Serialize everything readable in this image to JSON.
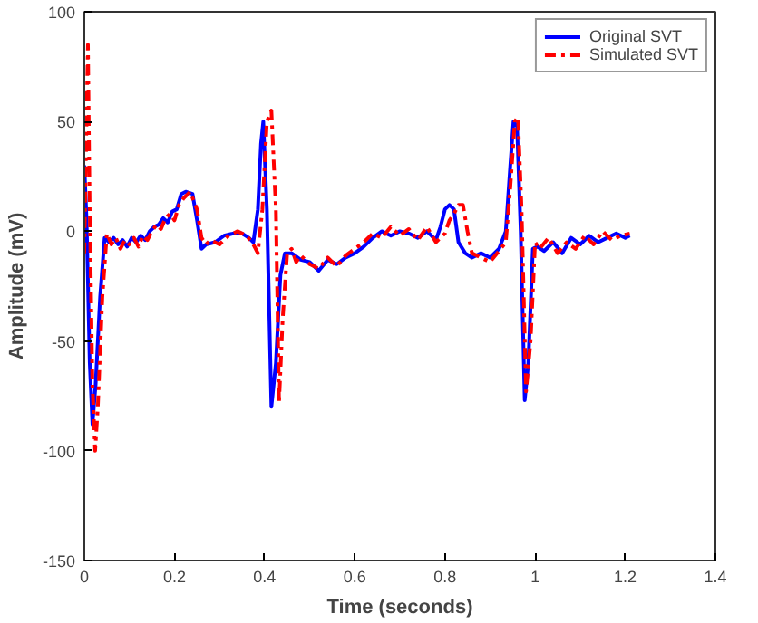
{
  "chart_data": {
    "type": "line",
    "xlabel": "Time (seconds)",
    "ylabel": "Amplitude (mV)",
    "xlim": [
      0,
      1.4
    ],
    "ylim": [
      -150,
      100
    ],
    "xticks": [
      0,
      0.2,
      0.4,
      0.6,
      0.8,
      1,
      1.2,
      1.4
    ],
    "yticks": [
      -150,
      -100,
      -50,
      0,
      50,
      100
    ],
    "grid": false,
    "legend": "top right",
    "series": [
      {
        "name": "Original SVT",
        "color": "#0000ff",
        "line_style": "solid",
        "x": [
          0,
          0.005,
          0.012,
          0.018,
          0.025,
          0.035,
          0.045,
          0.055,
          0.065,
          0.075,
          0.085,
          0.095,
          0.105,
          0.115,
          0.125,
          0.135,
          0.145,
          0.155,
          0.165,
          0.175,
          0.185,
          0.195,
          0.205,
          0.215,
          0.225,
          0.24,
          0.25,
          0.26,
          0.27,
          0.29,
          0.31,
          0.33,
          0.35,
          0.365,
          0.375,
          0.385,
          0.392,
          0.397,
          0.405,
          0.415,
          0.425,
          0.435,
          0.445,
          0.46,
          0.48,
          0.5,
          0.52,
          0.54,
          0.56,
          0.58,
          0.6,
          0.62,
          0.64,
          0.66,
          0.68,
          0.7,
          0.72,
          0.74,
          0.76,
          0.78,
          0.79,
          0.8,
          0.81,
          0.82,
          0.83,
          0.845,
          0.86,
          0.88,
          0.9,
          0.92,
          0.935,
          0.945,
          0.952,
          0.96,
          0.968,
          0.977,
          0.985,
          0.995,
          1.005,
          1.02,
          1.04,
          1.06,
          1.08,
          1.1,
          1.12,
          1.14,
          1.16,
          1.18,
          1.2,
          1.21
        ],
        "values": [
          30,
          5,
          -60,
          -88,
          -70,
          -30,
          -3,
          -5,
          -3,
          -6,
          -4,
          -7,
          -3,
          -5,
          -2,
          -4,
          0,
          2,
          3,
          6,
          4,
          9,
          10,
          17,
          18,
          17,
          5,
          -8,
          -6,
          -5,
          -2,
          -1,
          -1,
          -3,
          -5,
          10,
          40,
          50,
          10,
          -80,
          -60,
          -20,
          -10,
          -10,
          -13,
          -14,
          -18,
          -13,
          -15,
          -12,
          -10,
          -7,
          -3,
          0,
          -2,
          0,
          -1,
          -3,
          0,
          -4,
          2,
          10,
          12,
          10,
          -5,
          -10,
          -12,
          -10,
          -12,
          -8,
          0,
          30,
          50,
          48,
          0,
          -77,
          -60,
          -8,
          -7,
          -9,
          -5,
          -10,
          -3,
          -6,
          -2,
          -5,
          -3,
          -1,
          -3,
          -2
        ]
      },
      {
        "name": "Simulated SVT",
        "color": "#ff0000",
        "line_style": "dashed",
        "x": [
          0,
          0.004,
          0.008,
          0.012,
          0.018,
          0.024,
          0.03,
          0.04,
          0.05,
          0.06,
          0.07,
          0.08,
          0.09,
          0.1,
          0.11,
          0.12,
          0.13,
          0.14,
          0.15,
          0.16,
          0.17,
          0.18,
          0.19,
          0.2,
          0.21,
          0.22,
          0.235,
          0.25,
          0.26,
          0.27,
          0.28,
          0.3,
          0.32,
          0.34,
          0.36,
          0.375,
          0.385,
          0.395,
          0.405,
          0.415,
          0.425,
          0.432,
          0.44,
          0.45,
          0.46,
          0.47,
          0.48,
          0.5,
          0.52,
          0.54,
          0.56,
          0.58,
          0.6,
          0.62,
          0.64,
          0.66,
          0.68,
          0.7,
          0.72,
          0.74,
          0.76,
          0.78,
          0.8,
          0.81,
          0.82,
          0.83,
          0.84,
          0.85,
          0.86,
          0.88,
          0.9,
          0.92,
          0.935,
          0.945,
          0.955,
          0.962,
          0.97,
          0.98,
          0.99,
          1.0,
          1.01,
          1.03,
          1.05,
          1.07,
          1.09,
          1.11,
          1.13,
          1.15,
          1.17,
          1.19,
          1.21
        ],
        "values": [
          -10,
          40,
          85,
          10,
          -70,
          -100,
          -80,
          -30,
          -1,
          -6,
          -3,
          -8,
          -4,
          -6,
          -3,
          -7,
          -2,
          -4,
          0,
          3,
          1,
          6,
          8,
          5,
          12,
          15,
          18,
          10,
          -3,
          -6,
          -4,
          -6,
          -2,
          0,
          -2,
          -6,
          -10,
          10,
          50,
          55,
          10,
          -78,
          -40,
          -10,
          -8,
          -14,
          -11,
          -15,
          -17,
          -12,
          -16,
          -11,
          -8,
          -5,
          -1,
          -3,
          2,
          -2,
          1,
          -4,
          2,
          -5,
          -1,
          5,
          8,
          12,
          12,
          0,
          -10,
          -12,
          -14,
          -9,
          -5,
          20,
          50,
          52,
          10,
          -73,
          -50,
          -5,
          -8,
          -3,
          -10,
          -5,
          -8,
          -2,
          -6,
          0,
          -4,
          -2,
          -1
        ]
      }
    ]
  }
}
